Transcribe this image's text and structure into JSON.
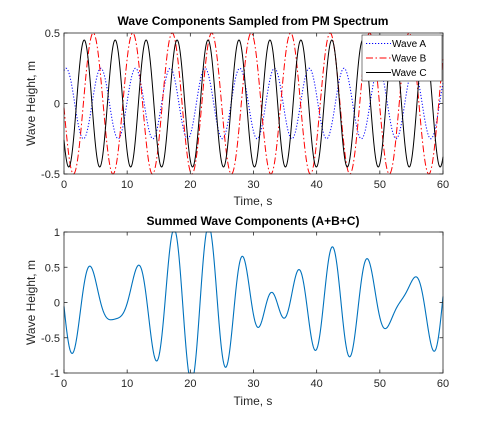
{
  "chart_data": [
    {
      "type": "line",
      "title": "Wave Components Sampled from PM Spectrum",
      "xlabel": "Time, s",
      "ylabel": "Wave Height, m",
      "xlim": [
        0,
        60
      ],
      "ylim": [
        -0.5,
        0.5
      ],
      "xticks": [
        0,
        10,
        20,
        30,
        40,
        50,
        60
      ],
      "xtick_labels": [
        "0",
        "10",
        "20",
        "30",
        "40",
        "50",
        "60"
      ],
      "yticks": [
        -0.5,
        0,
        0.5
      ],
      "ytick_labels": [
        "-0.5",
        "0",
        "0.5"
      ],
      "grid": false,
      "legend": {
        "position": "top-right",
        "entries": [
          "Wave A",
          "Wave B",
          "Wave C"
        ]
      },
      "series": [
        {
          "name": "Wave A",
          "color": "#0000ff",
          "line_style": "dotted",
          "amplitude": 0.25,
          "period_s": 5.5,
          "phase_rad": 1.2
        },
        {
          "name": "Wave B",
          "color": "#ff0000",
          "line_style": "dash-dot",
          "amplitude": 0.5,
          "period_s": 6.25,
          "phase_rad": 3.2
        },
        {
          "name": "Wave C",
          "color": "#000000",
          "line_style": "solid",
          "amplitude": 0.45,
          "period_s": 4.9,
          "phase_rad": 3.75
        }
      ]
    },
    {
      "type": "line",
      "title": "Summed Wave Components (A+B+C)",
      "xlabel": "Time, s",
      "ylabel": "Wave Height, m",
      "xlim": [
        0,
        60
      ],
      "ylim": [
        -1,
        1
      ],
      "xticks": [
        0,
        10,
        20,
        30,
        40,
        50,
        60
      ],
      "xtick_labels": [
        "0",
        "10",
        "20",
        "30",
        "40",
        "50",
        "60"
      ],
      "yticks": [
        -1,
        -0.5,
        0,
        0.5,
        1
      ],
      "ytick_labels": [
        "-1",
        "-0.5",
        "0",
        "0.5",
        "1"
      ],
      "grid": false,
      "series": [
        {
          "color": "#0072bd",
          "line_style": "solid",
          "components": [
            "Wave A",
            "Wave B",
            "Wave C"
          ]
        }
      ]
    }
  ]
}
